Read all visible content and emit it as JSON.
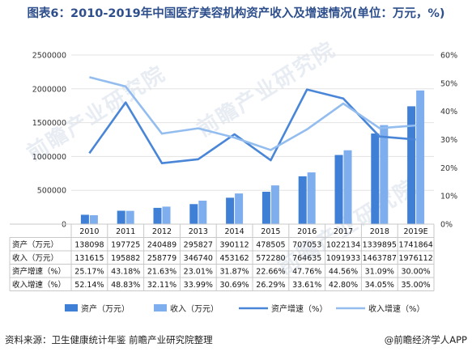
{
  "title": "图表6：2010-2019年中国医疗美容机构资产收入及增速情况(单位：万元，%)",
  "footer": {
    "source": "资料来源：卫生健康统计年鉴 前瞻产业研究院整理",
    "brand": "@前瞻经济学人APP"
  },
  "watermark": "前瞻产业研究院",
  "chart_data": {
    "type": "bar",
    "categories": [
      "2010",
      "2011",
      "2012",
      "2013",
      "2014",
      "2015",
      "2016",
      "2017",
      "2018",
      "2019E"
    ],
    "y_left": {
      "ticks": [
        "0",
        "500000",
        "1000000",
        "1500000",
        "2000000",
        "2500000"
      ],
      "min": 0,
      "max": 2500000
    },
    "y_right": {
      "ticks": [
        "0%",
        "10%",
        "20%",
        "30%",
        "40%",
        "50%",
        "60%"
      ],
      "min": 0,
      "max": 60
    },
    "series": [
      {
        "name": "资产（万元）",
        "type": "bar",
        "axis": "left",
        "color": "#3f7fd6",
        "values": [
          138098,
          197725,
          240489,
          295827,
          390112,
          478505,
          707053,
          1022134,
          1339895,
          1741864
        ]
      },
      {
        "name": "收入（万元）",
        "type": "bar",
        "axis": "left",
        "color": "#7faeee",
        "values": [
          131615,
          195882,
          258779,
          346740,
          453162,
          572280,
          764635,
          1091933,
          1463787,
          1976112
        ]
      },
      {
        "name": "资产增速（%）",
        "type": "line",
        "axis": "right",
        "color": "#4a86d8",
        "values": [
          25.17,
          43.18,
          21.63,
          23.01,
          31.87,
          22.66,
          47.76,
          44.56,
          31.09,
          30.0
        ]
      },
      {
        "name": "收入增速（%）",
        "type": "line",
        "axis": "right",
        "color": "#93bdef",
        "values": [
          52.14,
          48.83,
          32.11,
          33.99,
          30.69,
          26.29,
          33.61,
          42.8,
          34.05,
          35.0
        ]
      }
    ],
    "table": {
      "row_labels": [
        "资产（万元）",
        "收入（万元）",
        "资产增速（%）",
        "收入增速（%）"
      ],
      "rows": [
        [
          "138098",
          "197725",
          "240489",
          "295827",
          "390112",
          "478505",
          "707053",
          "1022134",
          "1339895",
          "1741864"
        ],
        [
          "131615",
          "195882",
          "258779",
          "346740",
          "453162",
          "572280",
          "764635",
          "1091933",
          "1463787",
          "1976112"
        ],
        [
          "25.17%",
          "43.18%",
          "21.63%",
          "23.01%",
          "31.87%",
          "22.66%",
          "47.76%",
          "44.56%",
          "31.09%",
          "30.00%"
        ],
        [
          "52.14%",
          "48.83%",
          "32.11%",
          "33.99%",
          "30.69%",
          "26.29%",
          "33.61%",
          "42.80%",
          "34.05%",
          "35.00%"
        ]
      ]
    },
    "legend": [
      "资产（万元）",
      "收入（万元）",
      "资产增速（%）",
      "收入增速（%）"
    ],
    "legend_position": "bottom",
    "grid": true
  }
}
